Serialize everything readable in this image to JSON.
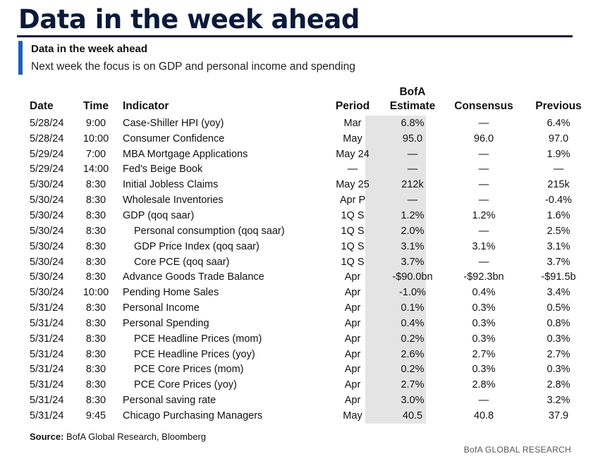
{
  "header": {
    "title": "Data in the week ahead",
    "subtitle": "Data in the week ahead",
    "caption": "Next week the focus is on GDP and personal income and spending"
  },
  "table": {
    "columns": {
      "date": "Date",
      "time": "Time",
      "indicator": "Indicator",
      "period": "Period",
      "estimate_line1": "BofA",
      "estimate_line2": "Estimate",
      "consensus": "Consensus",
      "previous": "Previous"
    },
    "rows": [
      {
        "date": "5/28/24",
        "time": "9:00",
        "indicator": "Case-Shiller HPI (yoy)",
        "indent": false,
        "period": "Mar",
        "estimate": "6.8%",
        "consensus": "—",
        "previous": "6.4%"
      },
      {
        "date": "5/28/24",
        "time": "10:00",
        "indicator": "Consumer Confidence",
        "indent": false,
        "period": "May",
        "estimate": "95.0",
        "consensus": "96.0",
        "previous": "97.0"
      },
      {
        "date": "5/29/24",
        "time": "7:00",
        "indicator": "MBA Mortgage Applications",
        "indent": false,
        "period": "May 24",
        "estimate": "—",
        "consensus": "—",
        "previous": "1.9%"
      },
      {
        "date": "5/29/24",
        "time": "14:00",
        "indicator": "Fed's Beige Book",
        "indent": false,
        "period": "—",
        "estimate": "—",
        "consensus": "—",
        "previous": "—"
      },
      {
        "date": "5/30/24",
        "time": "8:30",
        "indicator": "Initial Jobless Claims",
        "indent": false,
        "period": "May 25",
        "estimate": "212k",
        "consensus": "—",
        "previous": "215k"
      },
      {
        "date": "5/30/24",
        "time": "8:30",
        "indicator": "Wholesale Inventories",
        "indent": false,
        "period": "Apr P",
        "estimate": "—",
        "consensus": "—",
        "previous": "-0.4%"
      },
      {
        "date": "5/30/24",
        "time": "8:30",
        "indicator": "GDP (qoq saar)",
        "indent": false,
        "period": "1Q S",
        "estimate": "1.2%",
        "consensus": "1.2%",
        "previous": "1.6%"
      },
      {
        "date": "5/30/24",
        "time": "8:30",
        "indicator": "Personal consumption (qoq saar)",
        "indent": true,
        "period": "1Q S",
        "estimate": "2.0%",
        "consensus": "—",
        "previous": "2.5%"
      },
      {
        "date": "5/30/24",
        "time": "8:30",
        "indicator": "GDP Price Index (qoq saar)",
        "indent": true,
        "period": "1Q S",
        "estimate": "3.1%",
        "consensus": "3.1%",
        "previous": "3.1%"
      },
      {
        "date": "5/30/24",
        "time": "8:30",
        "indicator": "Core PCE (qoq saar)",
        "indent": true,
        "period": "1Q S",
        "estimate": "3.7%",
        "consensus": "—",
        "previous": "3.7%"
      },
      {
        "date": "5/30/24",
        "time": "8:30",
        "indicator": "Advance Goods Trade Balance",
        "indent": false,
        "period": "Apr",
        "estimate": "-$90.0bn",
        "consensus": "-$92.3bn",
        "previous": "-$91.5b"
      },
      {
        "date": "5/30/24",
        "time": "10:00",
        "indicator": "Pending Home Sales",
        "indent": false,
        "period": "Apr",
        "estimate": "-1.0%",
        "consensus": "0.4%",
        "previous": "3.4%"
      },
      {
        "date": "5/31/24",
        "time": "8:30",
        "indicator": "Personal Income",
        "indent": false,
        "period": "Apr",
        "estimate": "0.1%",
        "consensus": "0.3%",
        "previous": "0.5%"
      },
      {
        "date": "5/31/24",
        "time": "8:30",
        "indicator": "Personal Spending",
        "indent": false,
        "period": "Apr",
        "estimate": "0.4%",
        "consensus": "0.3%",
        "previous": "0.8%"
      },
      {
        "date": "5/31/24",
        "time": "8:30",
        "indicator": "PCE Headline Prices (mom)",
        "indent": true,
        "period": "Apr",
        "estimate": "0.2%",
        "consensus": "0.3%",
        "previous": "0.3%"
      },
      {
        "date": "5/31/24",
        "time": "8:30",
        "indicator": "PCE Headline Prices (yoy)",
        "indent": true,
        "period": "Apr",
        "estimate": "2.6%",
        "consensus": "2.7%",
        "previous": "2.7%"
      },
      {
        "date": "5/31/24",
        "time": "8:30",
        "indicator": "PCE Core Prices (mom)",
        "indent": true,
        "period": "Apr",
        "estimate": "0.2%",
        "consensus": "0.3%",
        "previous": "0.3%"
      },
      {
        "date": "5/31/24",
        "time": "8:30",
        "indicator": "PCE Core Prices (yoy)",
        "indent": true,
        "period": "Apr",
        "estimate": "2.7%",
        "consensus": "2.8%",
        "previous": "2.8%"
      },
      {
        "date": "5/31/24",
        "time": "8:30",
        "indicator": "Personal saving rate",
        "indent": false,
        "period": "Apr",
        "estimate": "3.0%",
        "consensus": "—",
        "previous": "3.2%"
      },
      {
        "date": "5/31/24",
        "time": "9:45",
        "indicator": "Chicago Purchasing Managers",
        "indent": false,
        "period": "May",
        "estimate": "40.5",
        "consensus": "40.8",
        "previous": "37.9"
      }
    ]
  },
  "footer": {
    "source_label": "Source:",
    "source_text": "BofA Global Research, Bloomberg",
    "brand": "BofA GLOBAL RESEARCH"
  },
  "colors": {
    "title": "#0b1a3a",
    "accent": "#1f5fbf",
    "estimate_shade": "#e4e4e4"
  }
}
